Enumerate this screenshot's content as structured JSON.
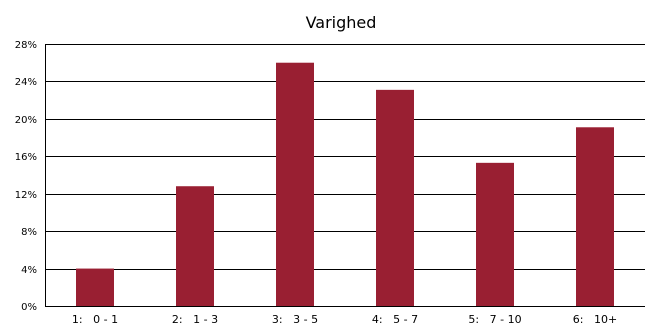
{
  "chart_data": {
    "type": "bar",
    "title": "Varighed",
    "xlabel": "",
    "ylabel": "",
    "categories": [
      "1:   0 - 1",
      "2:   1 - 3",
      "3:   3 - 5",
      "4:   5 - 7",
      "5:   7 - 10",
      "6:   10+"
    ],
    "values": [
      4.0,
      12.8,
      26.0,
      23.1,
      15.3,
      19.1
    ],
    "ylim": [
      0,
      28
    ],
    "y_ticks": [
      0,
      4,
      8,
      12,
      16,
      20,
      24,
      28
    ],
    "y_tick_labels": [
      "0%",
      "4%",
      "8%",
      "12%",
      "16%",
      "20%",
      "24%",
      "28%"
    ],
    "y_unit": "%",
    "grid": true,
    "legend": "none",
    "colors": {
      "bar": "#991f32",
      "grid": "#000000",
      "axis": "#000000",
      "text": "#000000",
      "background": "#ffffff"
    }
  }
}
